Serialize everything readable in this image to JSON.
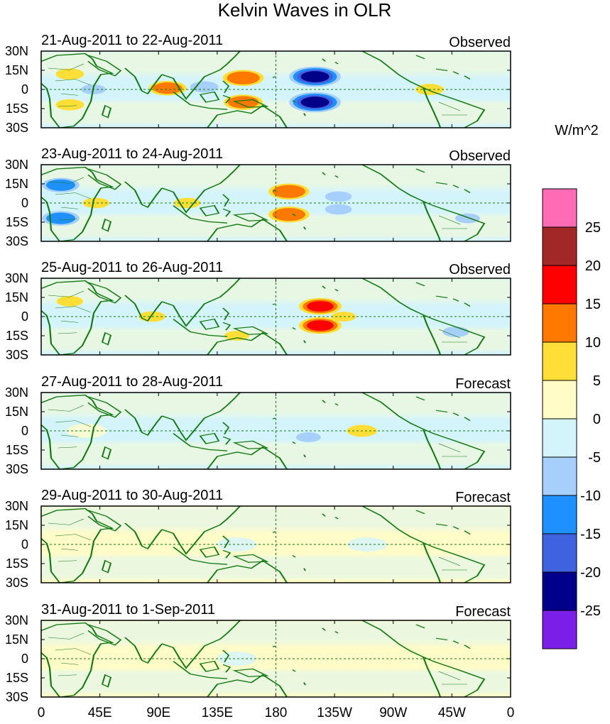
{
  "title": "Kelvin Waves in OLR",
  "unit_label": "W/m^2",
  "lat_ticks": [
    "30N",
    "15N",
    "0",
    "15S",
    "30S"
  ],
  "lon_ticks": [
    "0",
    "45E",
    "90E",
    "135E",
    "180",
    "135W",
    "90W",
    "45W",
    "0"
  ],
  "colorbar": {
    "colors": [
      "#7b1fe8",
      "#00008b",
      "#3f63e0",
      "#1e90ff",
      "#a6d0fb",
      "#d4f4fc",
      "#fffcc8",
      "#ffde37",
      "#ff7800",
      "#ff0000",
      "#a22828",
      "#ff6bb4"
    ],
    "labels": [
      "-25",
      "-20",
      "-15",
      "-10",
      "-5",
      "0",
      "5",
      "10",
      "15",
      "20",
      "25"
    ]
  },
  "panels": [
    {
      "date_label": "21-Aug-2011 to 22-Aug-2011",
      "type_label": "Observed"
    },
    {
      "date_label": "23-Aug-2011 to 24-Aug-2011",
      "type_label": "Observed"
    },
    {
      "date_label": "25-Aug-2011 to 26-Aug-2011",
      "type_label": "Observed"
    },
    {
      "date_label": "27-Aug-2011 to 28-Aug-2011",
      "type_label": "Forecast"
    },
    {
      "date_label": "29-Aug-2011 to 30-Aug-2011",
      "type_label": "Forecast"
    },
    {
      "date_label": "31-Aug-2011 to 1-Sep-2011",
      "type_label": "Forecast"
    }
  ],
  "chart_data": {
    "type": "heatmap",
    "variable": "OLR anomaly (Kelvin wave filtered)",
    "x_range_deg": [
      0,
      360
    ],
    "y_range_deg": [
      -30,
      30
    ],
    "anomaly_blobs_by_panel": [
      [
        {
          "lon": 155,
          "lat": 9,
          "value": 14
        },
        {
          "lon": 155,
          "lat": -10,
          "value": 13
        },
        {
          "lon": 210,
          "lat": 10,
          "value": -20
        },
        {
          "lon": 210,
          "lat": -10,
          "value": -20
        },
        {
          "lon": 97,
          "lat": 1,
          "value": 12
        },
        {
          "lon": 298,
          "lat": 0,
          "value": 7
        },
        {
          "lon": 22,
          "lat": 12,
          "value": 7
        },
        {
          "lon": 22,
          "lat": -12,
          "value": 7
        },
        {
          "lon": 125,
          "lat": 2,
          "value": -7
        },
        {
          "lon": 40,
          "lat": 0,
          "value": -5
        }
      ],
      [
        {
          "lon": 190,
          "lat": 9,
          "value": 14
        },
        {
          "lon": 190,
          "lat": -9,
          "value": 14
        },
        {
          "lon": 228,
          "lat": 5,
          "value": -6
        },
        {
          "lon": 228,
          "lat": -5,
          "value": -6
        },
        {
          "lon": 15,
          "lat": 14,
          "value": -12
        },
        {
          "lon": 15,
          "lat": -12,
          "value": -12
        },
        {
          "lon": 42,
          "lat": 0,
          "value": 6
        },
        {
          "lon": 112,
          "lat": 0,
          "value": 6
        },
        {
          "lon": 327,
          "lat": -12,
          "value": -5
        }
      ],
      [
        {
          "lon": 214,
          "lat": 8,
          "value": 15
        },
        {
          "lon": 214,
          "lat": -7,
          "value": 15
        },
        {
          "lon": 232,
          "lat": 0,
          "value": 5
        },
        {
          "lon": 22,
          "lat": 12,
          "value": 6
        },
        {
          "lon": 85,
          "lat": 0,
          "value": 6
        },
        {
          "lon": 150,
          "lat": -15,
          "value": 5
        },
        {
          "lon": 318,
          "lat": -12,
          "value": -6
        }
      ],
      [
        {
          "lon": 246,
          "lat": 0,
          "value": 8
        },
        {
          "lon": 205,
          "lat": -5,
          "value": -5
        },
        {
          "lon": 160,
          "lat": 0,
          "value": -4
        },
        {
          "lon": 35,
          "lat": 0,
          "value": 3
        }
      ],
      [
        {
          "lon": 250,
          "lat": 0,
          "value": -3
        },
        {
          "lon": 150,
          "lat": 0,
          "value": -3
        },
        {
          "lon": 320,
          "lat": 0,
          "value": 2
        }
      ],
      [
        {
          "lon": 150,
          "lat": 0,
          "value": -3
        },
        {
          "lon": 60,
          "lat": 0,
          "value": 2
        },
        {
          "lon": 290,
          "lat": 0,
          "value": 2
        }
      ]
    ]
  }
}
